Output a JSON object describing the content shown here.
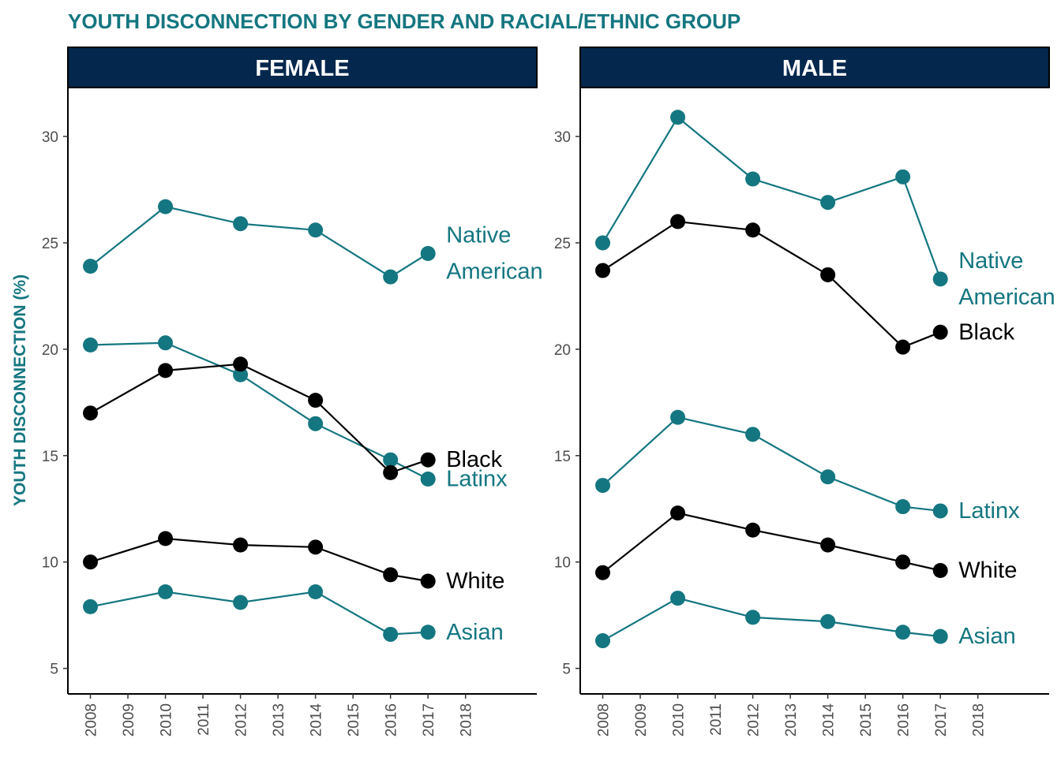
{
  "chart_data": {
    "type": "line",
    "title": "YOUTH DISCONNECTION BY GENDER AND RACIAL/ETHNIC GROUP",
    "ylabel": "YOUTH DISCONNECTION (%)",
    "xlabel": "",
    "ylim": [
      3.8,
      32.3
    ],
    "yticks": [
      5,
      10,
      15,
      20,
      25,
      30
    ],
    "xlim": [
      2007.4,
      2019.9
    ],
    "xticks": [
      2008,
      2009,
      2010,
      2011,
      2012,
      2013,
      2014,
      2015,
      2016,
      2017,
      2018
    ],
    "grid": false,
    "legend": "direct-labels",
    "colors": {
      "title": "#147680",
      "teal": "#147680",
      "black": "#000000",
      "strip_bg": "#03274d",
      "strip_text": "#ffffff"
    },
    "panels": [
      {
        "name": "FEMALE",
        "series": [
          {
            "label_lines": [
              "Native",
              "American"
            ],
            "color_key": "teal",
            "x": [
              2008,
              2010,
              2012,
              2014,
              2016,
              2017
            ],
            "values": [
              23.9,
              26.7,
              25.9,
              25.6,
              23.4,
              24.5
            ]
          },
          {
            "label_lines": [
              "Latinx"
            ],
            "color_key": "teal",
            "x": [
              2008,
              2010,
              2012,
              2014,
              2016,
              2017
            ],
            "values": [
              20.2,
              20.3,
              18.8,
              16.5,
              14.8,
              13.9
            ]
          },
          {
            "label_lines": [
              "Black"
            ],
            "color_key": "black",
            "x": [
              2008,
              2010,
              2012,
              2014,
              2016,
              2017
            ],
            "values": [
              17.0,
              19.0,
              19.3,
              17.6,
              14.2,
              14.8
            ]
          },
          {
            "label_lines": [
              "White"
            ],
            "color_key": "black",
            "x": [
              2008,
              2010,
              2012,
              2014,
              2016,
              2017
            ],
            "values": [
              10.0,
              11.1,
              10.8,
              10.7,
              9.4,
              9.1
            ]
          },
          {
            "label_lines": [
              "Asian"
            ],
            "color_key": "teal",
            "x": [
              2008,
              2010,
              2012,
              2014,
              2016,
              2017
            ],
            "values": [
              7.9,
              8.6,
              8.1,
              8.6,
              6.6,
              6.7
            ]
          }
        ]
      },
      {
        "name": "MALE",
        "series": [
          {
            "label_lines": [
              "Native",
              "American"
            ],
            "color_key": "teal",
            "x": [
              2008,
              2010,
              2012,
              2014,
              2016,
              2017
            ],
            "values": [
              25.0,
              30.9,
              28.0,
              26.9,
              28.1,
              23.3
            ]
          },
          {
            "label_lines": [
              "Black"
            ],
            "color_key": "black",
            "x": [
              2008,
              2010,
              2012,
              2014,
              2016,
              2017
            ],
            "values": [
              23.7,
              26.0,
              25.6,
              23.5,
              20.1,
              20.8
            ]
          },
          {
            "label_lines": [
              "Latinx"
            ],
            "color_key": "teal",
            "x": [
              2008,
              2010,
              2012,
              2014,
              2016,
              2017
            ],
            "values": [
              13.6,
              16.8,
              16.0,
              14.0,
              12.6,
              12.4
            ]
          },
          {
            "label_lines": [
              "White"
            ],
            "color_key": "black",
            "x": [
              2008,
              2010,
              2012,
              2014,
              2016,
              2017
            ],
            "values": [
              9.5,
              12.3,
              11.5,
              10.8,
              10.0,
              9.6
            ]
          },
          {
            "label_lines": [
              "Asian"
            ],
            "color_key": "teal",
            "x": [
              2008,
              2010,
              2012,
              2014,
              2016,
              2017
            ],
            "values": [
              6.3,
              8.3,
              7.4,
              7.2,
              6.7,
              6.5
            ]
          }
        ]
      }
    ]
  }
}
